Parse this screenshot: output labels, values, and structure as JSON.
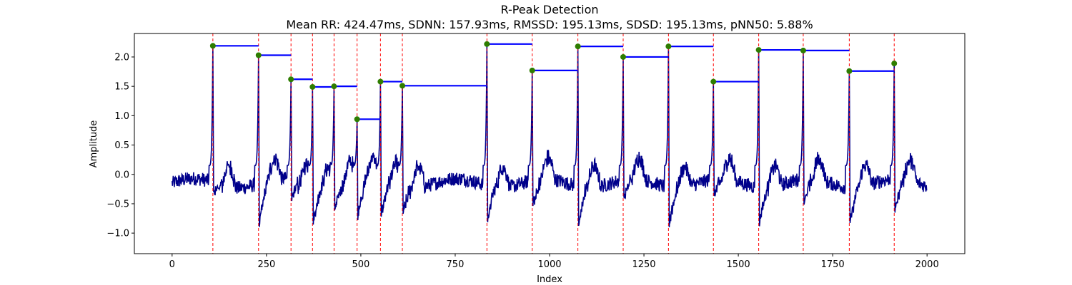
{
  "chart_data": {
    "type": "line",
    "title": "R-Peak Detection",
    "subtitle": "Mean RR: 424.47ms, SDNN: 157.93ms, RMSSD: 195.13ms, SDSD: 195.13ms, pNN50: 5.88%",
    "xlabel": "Index",
    "ylabel": "Amplitude",
    "xlim": [
      -100,
      2100
    ],
    "ylim": [
      -1.35,
      2.4
    ],
    "xticks": [
      0,
      250,
      500,
      750,
      1000,
      1250,
      1500,
      1750,
      2000
    ],
    "xtick_labels": [
      "0",
      "250",
      "500",
      "750",
      "1000",
      "1250",
      "1500",
      "1750",
      "2000"
    ],
    "yticks": [
      -1.0,
      -0.5,
      0.0,
      0.5,
      1.0,
      1.5,
      2.0
    ],
    "ytick_labels": [
      "−1.0",
      "−0.5",
      "0.0",
      "0.5",
      "1.0",
      "1.5",
      "2.0"
    ],
    "grid": false,
    "colors": {
      "signal": "#00008b",
      "peak_line": "#ff0000",
      "peak_marker": "#2e7d00",
      "rr_segment": "#0000ff"
    },
    "signal": {
      "x_range": [
        0,
        1999
      ],
      "amplitude_peak": 2.22
    },
    "r_peaks": [
      {
        "x": 108,
        "y": 2.19
      },
      {
        "x": 229,
        "y": 2.03
      },
      {
        "x": 315,
        "y": 1.62
      },
      {
        "x": 372,
        "y": 1.49
      },
      {
        "x": 429,
        "y": 1.5
      },
      {
        "x": 490,
        "y": 0.94
      },
      {
        "x": 552,
        "y": 1.58
      },
      {
        "x": 610,
        "y": 1.51
      },
      {
        "x": 834,
        "y": 2.22
      },
      {
        "x": 954,
        "y": 1.77
      },
      {
        "x": 1075,
        "y": 2.18
      },
      {
        "x": 1195,
        "y": 2.0
      },
      {
        "x": 1315,
        "y": 2.18
      },
      {
        "x": 1434,
        "y": 1.58
      },
      {
        "x": 1554,
        "y": 2.12
      },
      {
        "x": 1672,
        "y": 2.11
      },
      {
        "x": 1794,
        "y": 1.76
      },
      {
        "x": 1913,
        "y": 1.89
      }
    ]
  }
}
